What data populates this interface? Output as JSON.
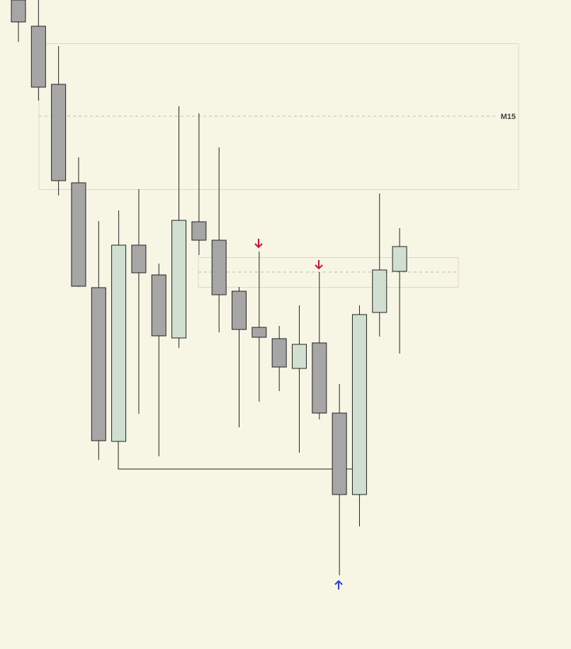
{
  "chart_data": {
    "type": "candlestick",
    "open": [
      916,
      879,
      797,
      658,
      510,
      293,
      570,
      528,
      439,
      603,
      577,
      505,
      454,
      438,
      396,
      432,
      333,
      218,
      475,
      533
    ],
    "high": [
      916,
      916,
      851,
      694,
      604,
      619,
      649,
      544,
      766,
      756,
      708,
      511,
      561,
      456,
      485,
      532,
      374,
      485,
      643,
      594
    ],
    "low": [
      857,
      774,
      640,
      511,
      267,
      293,
      332,
      272,
      425,
      556,
      447,
      313,
      349,
      364,
      277,
      324,
      104,
      173,
      441,
      417
    ],
    "close": [
      885,
      793,
      661,
      512,
      294,
      570,
      531,
      442,
      605,
      577,
      500,
      451,
      440,
      398,
      430,
      333,
      218,
      472,
      535,
      568
    ],
    "up_color": "#d0dfd0",
    "down_color": "#a6a6a6",
    "ylim": [
      0,
      916
    ],
    "annotation": "M15"
  }
}
